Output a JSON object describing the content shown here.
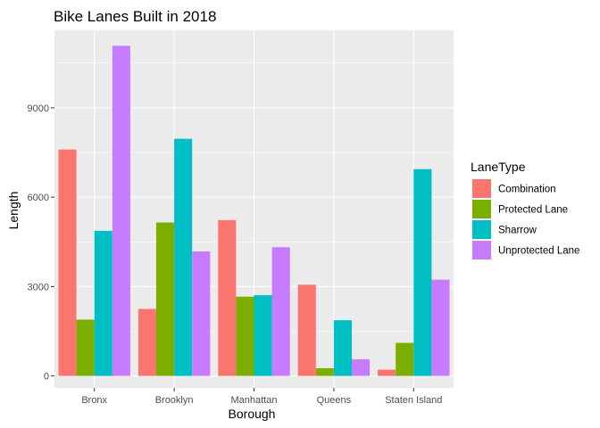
{
  "chart_data": {
    "type": "bar",
    "title": "Bike Lanes Built in 2018",
    "xlabel": "Borough",
    "ylabel": "Length",
    "categories": [
      "Bronx",
      "Brooklyn",
      "Manhattan",
      "Queens",
      "Staten Island"
    ],
    "ylim": [
      -400,
      11600
    ],
    "yticks": [
      0,
      3000,
      6000,
      9000
    ],
    "ytick_labels": [
      "0",
      "3000",
      "6000",
      "9000"
    ],
    "grid": true,
    "legend": {
      "title": "LaneType",
      "placement": "right"
    },
    "series": [
      {
        "name": "Combination",
        "color": "#F8766D",
        "values": [
          7600,
          2250,
          5230,
          3060,
          210
        ]
      },
      {
        "name": "Protected Lane",
        "color": "#7CAE00",
        "values": [
          1890,
          5150,
          2660,
          260,
          1110
        ]
      },
      {
        "name": "Sharrow",
        "color": "#00BFC4",
        "values": [
          4870,
          7960,
          2710,
          1870,
          6940
        ]
      },
      {
        "name": "Unprotected Lane",
        "color": "#C77CFF",
        "values": [
          11080,
          4180,
          4320,
          560,
          3230
        ]
      }
    ],
    "colors": {
      "panel": "#EBEBEB",
      "grid": "#FFFFFF",
      "tick_text": "#4D4D4D",
      "tick_mark": "#333333"
    }
  }
}
